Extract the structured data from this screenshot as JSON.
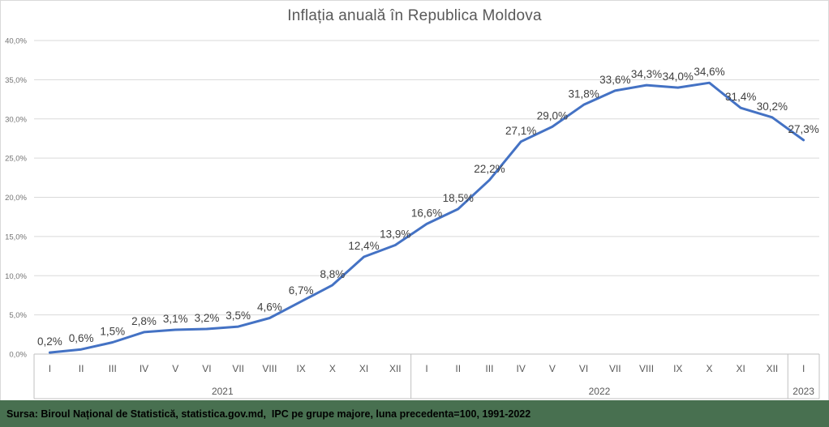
{
  "chart_data": {
    "type": "line",
    "title": "Inflația anuală în Republica Moldova",
    "categories": [
      "I",
      "II",
      "III",
      "IV",
      "V",
      "VI",
      "VII",
      "VIII",
      "IX",
      "X",
      "XI",
      "XII",
      "I",
      "II",
      "III",
      "IV",
      "V",
      "VI",
      "VII",
      "VIII",
      "IX",
      "X",
      "XI",
      "XII",
      "I"
    ],
    "year_groups": [
      {
        "label": "2021",
        "count": 12
      },
      {
        "label": "2022",
        "count": 12
      },
      {
        "label": "2023",
        "count": 1
      }
    ],
    "values": [
      0.2,
      0.6,
      1.5,
      2.8,
      3.1,
      3.2,
      3.5,
      4.6,
      6.7,
      8.8,
      12.4,
      13.9,
      16.6,
      18.5,
      22.2,
      27.1,
      29.0,
      31.8,
      33.6,
      34.3,
      34.0,
      34.6,
      31.4,
      30.2,
      27.3
    ],
    "data_labels": [
      "0,2%",
      "0,6%",
      "1,5%",
      "2,8%",
      "3,1%",
      "3,2%",
      "3,5%",
      "4,6%",
      "6,7%",
      "8,8%",
      "12,4%",
      "13,9%",
      "16,6%",
      "18,5%",
      "22,2%",
      "27,1%",
      "29,0%",
      "31,8%",
      "33,6%",
      "34,3%",
      "34,0%",
      "34,6%",
      "31,4%",
      "30,2%",
      "27,3%"
    ],
    "y_tick_labels": [
      "0,0%",
      "5,0%",
      "10,0%",
      "15,0%",
      "20,0%",
      "25,0%",
      "30,0%",
      "35,0%",
      "40,0%"
    ],
    "ylim": [
      0,
      40
    ],
    "y_tick_step": 5,
    "grid": true,
    "legend": "none",
    "line_color": "#4472C4"
  },
  "colors": {
    "background": "#FFFFFF",
    "frame_border": "#D9D9D9",
    "gridline": "#D9D9D9",
    "axis_box": "#C0C0C0",
    "title_text": "#595959",
    "tick_text": "#737373",
    "category_text": "#595959",
    "data_label_text": "#404040",
    "source_bar_bg": "#487050",
    "source_bar_text": "#000000"
  },
  "source_bar": {
    "text": "Sursa: Biroul Național de Statistică, statistica.gov.md,  IPC pe grupe majore, luna precedenta=100, 1991-2022"
  }
}
